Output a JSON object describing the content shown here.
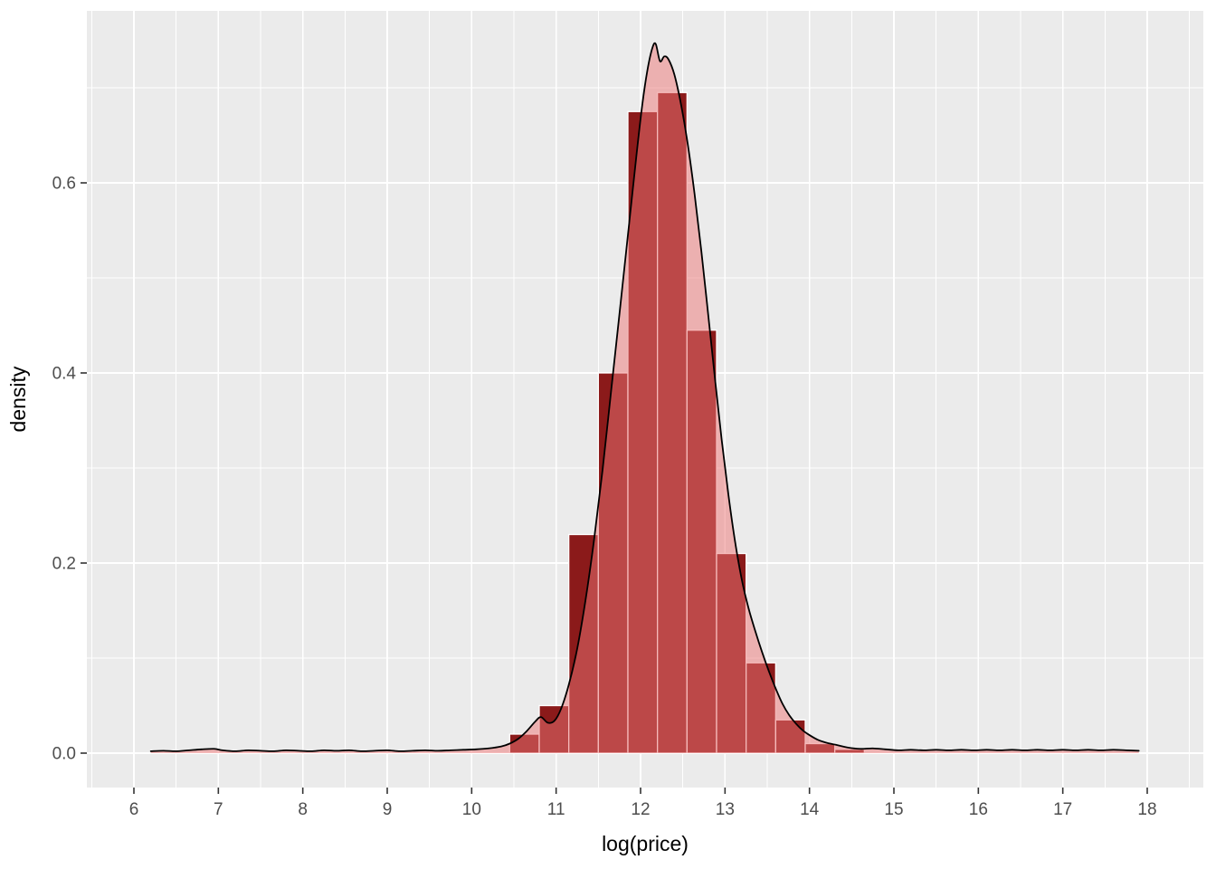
{
  "figure": {
    "background": "#FFFFFF",
    "panel_bg": "#EBEBEB",
    "grid_color": "#FFFFFF",
    "tick_mark_color": "#333333",
    "tick_label_color": "#4D4D4D",
    "axis_title_color": "#000000"
  },
  "chart_data": {
    "type": "bar",
    "subtype": "histogram-with-density-overlay",
    "layers": [
      "bar",
      "area",
      "line"
    ],
    "title": "",
    "xlabel": "log(price)",
    "ylabel": "density",
    "xlim": [
      5.44,
      18.66
    ],
    "ylim": [
      -0.036,
      0.781
    ],
    "grid": "major-and-minor",
    "legend": "none",
    "x_major_ticks": [
      6,
      7,
      8,
      9,
      10,
      11,
      12,
      13,
      14,
      15,
      16,
      17,
      18
    ],
    "x_tick_labels": [
      "6",
      "7",
      "8",
      "9",
      "10",
      "11",
      "12",
      "13",
      "14",
      "15",
      "16",
      "17",
      "18"
    ],
    "x_minor_ticks": [
      5.5,
      6.5,
      7.5,
      8.5,
      9.5,
      10.5,
      11.5,
      12.5,
      13.5,
      14.5,
      15.5,
      16.5,
      17.5,
      18.5
    ],
    "y_major_ticks": [
      0,
      0.2,
      0.4,
      0.6
    ],
    "y_tick_labels": [
      "0.0",
      "0.2",
      "0.4",
      "0.6"
    ],
    "y_minor_ticks": [
      0.1,
      0.3,
      0.5,
      0.7
    ],
    "histogram": {
      "binwidth": 0.35,
      "bar_fill": "#8B1A1A",
      "bar_border": "#FFFFFF",
      "bars": [
        {
          "x0": 10.45,
          "h": 0.02
        },
        {
          "x0": 10.8,
          "h": 0.05
        },
        {
          "x0": 11.15,
          "h": 0.23
        },
        {
          "x0": 11.5,
          "h": 0.4
        },
        {
          "x0": 11.85,
          "h": 0.675
        },
        {
          "x0": 12.2,
          "h": 0.695
        },
        {
          "x0": 12.55,
          "h": 0.445
        },
        {
          "x0": 12.9,
          "h": 0.21
        },
        {
          "x0": 13.25,
          "h": 0.095
        },
        {
          "x0": 13.6,
          "h": 0.035
        },
        {
          "x0": 13.95,
          "h": 0.01
        },
        {
          "x0": 14.3,
          "h": 0.004
        }
      ]
    },
    "density": {
      "area_fill": "rgba(238,118,118,0.5)",
      "line_color": "#000000",
      "line_width": 1.8,
      "points": [
        [
          6.2,
          0.002
        ],
        [
          6.35,
          0.0025
        ],
        [
          6.5,
          0.002
        ],
        [
          6.65,
          0.003
        ],
        [
          6.8,
          0.004
        ],
        [
          6.95,
          0.0045
        ],
        [
          7.05,
          0.003
        ],
        [
          7.2,
          0.002
        ],
        [
          7.35,
          0.003
        ],
        [
          7.5,
          0.0025
        ],
        [
          7.65,
          0.002
        ],
        [
          7.8,
          0.003
        ],
        [
          7.95,
          0.0025
        ],
        [
          8.1,
          0.002
        ],
        [
          8.25,
          0.003
        ],
        [
          8.4,
          0.0025
        ],
        [
          8.55,
          0.003
        ],
        [
          8.7,
          0.002
        ],
        [
          8.85,
          0.0025
        ],
        [
          9.0,
          0.003
        ],
        [
          9.15,
          0.002
        ],
        [
          9.3,
          0.0025
        ],
        [
          9.45,
          0.003
        ],
        [
          9.6,
          0.0025
        ],
        [
          9.75,
          0.003
        ],
        [
          9.9,
          0.0035
        ],
        [
          10.05,
          0.004
        ],
        [
          10.2,
          0.005
        ],
        [
          10.35,
          0.007
        ],
        [
          10.45,
          0.01
        ],
        [
          10.55,
          0.015
        ],
        [
          10.65,
          0.023
        ],
        [
          10.75,
          0.033
        ],
        [
          10.82,
          0.038
        ],
        [
          10.9,
          0.032
        ],
        [
          10.98,
          0.034
        ],
        [
          11.06,
          0.047
        ],
        [
          11.15,
          0.072
        ],
        [
          11.25,
          0.11
        ],
        [
          11.35,
          0.162
        ],
        [
          11.45,
          0.225
        ],
        [
          11.55,
          0.298
        ],
        [
          11.65,
          0.38
        ],
        [
          11.75,
          0.462
        ],
        [
          11.85,
          0.545
        ],
        [
          11.95,
          0.628
        ],
        [
          12.02,
          0.682
        ],
        [
          12.08,
          0.718
        ],
        [
          12.14,
          0.742
        ],
        [
          12.18,
          0.746
        ],
        [
          12.23,
          0.728
        ],
        [
          12.28,
          0.733
        ],
        [
          12.33,
          0.73
        ],
        [
          12.4,
          0.714
        ],
        [
          12.48,
          0.682
        ],
        [
          12.56,
          0.64
        ],
        [
          12.64,
          0.588
        ],
        [
          12.72,
          0.528
        ],
        [
          12.8,
          0.462
        ],
        [
          12.88,
          0.395
        ],
        [
          12.96,
          0.33
        ],
        [
          13.04,
          0.272
        ],
        [
          13.12,
          0.222
        ],
        [
          13.2,
          0.182
        ],
        [
          13.28,
          0.152
        ],
        [
          13.36,
          0.128
        ],
        [
          13.44,
          0.106
        ],
        [
          13.52,
          0.086
        ],
        [
          13.6,
          0.068
        ],
        [
          13.68,
          0.052
        ],
        [
          13.76,
          0.04
        ],
        [
          13.84,
          0.031
        ],
        [
          13.92,
          0.024
        ],
        [
          14.0,
          0.019
        ],
        [
          14.1,
          0.014
        ],
        [
          14.2,
          0.011
        ],
        [
          14.3,
          0.009
        ],
        [
          14.45,
          0.006
        ],
        [
          14.6,
          0.0045
        ],
        [
          14.75,
          0.005
        ],
        [
          14.9,
          0.004
        ],
        [
          15.05,
          0.003
        ],
        [
          15.2,
          0.0035
        ],
        [
          15.35,
          0.003
        ],
        [
          15.5,
          0.0035
        ],
        [
          15.65,
          0.003
        ],
        [
          15.8,
          0.0035
        ],
        [
          15.95,
          0.003
        ],
        [
          16.1,
          0.0035
        ],
        [
          16.25,
          0.003
        ],
        [
          16.4,
          0.0035
        ],
        [
          16.55,
          0.003
        ],
        [
          16.7,
          0.0035
        ],
        [
          16.85,
          0.003
        ],
        [
          17.0,
          0.0035
        ],
        [
          17.15,
          0.003
        ],
        [
          17.3,
          0.0035
        ],
        [
          17.45,
          0.003
        ],
        [
          17.6,
          0.0035
        ],
        [
          17.75,
          0.003
        ],
        [
          17.9,
          0.0025
        ]
      ]
    }
  }
}
